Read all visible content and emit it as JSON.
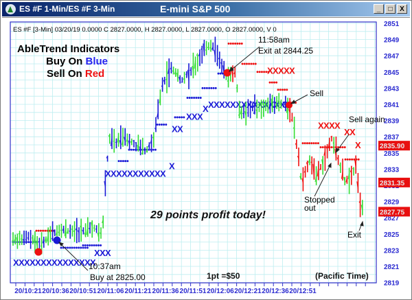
{
  "window": {
    "title_left": "ES #F 1-Min/ES #F 3-Min",
    "title_center": "E-mini S&P 500",
    "buttons": {
      "minimize": "_",
      "maximize": "□",
      "close": "X"
    }
  },
  "chart_header": "ES #F [3-Min] 03/20/19  0.0000 C 2827.0000, H 2827.0000, L 2827.0000, O 2827.0000, V 0",
  "legend": {
    "line1": "AbleTrend Indicators",
    "line2_prefix": "Buy On ",
    "line2_color_word": "Blue",
    "line3_prefix": "Sell On ",
    "line3_color_word": "Red"
  },
  "annotations": {
    "buy_time": "10:37am",
    "buy_price": "Buy at 2825.00",
    "exit_time": "11:58am",
    "exit_price": "Exit at 2844.25",
    "sell": "Sell",
    "sell_again": "Sell again",
    "stopped_out_1": "Stopped",
    "stopped_out_2": "out",
    "exit": "Exit",
    "profit": "29 points profit  today!",
    "point_value": "1pt =$50",
    "timezone": "(Pacific Time)"
  },
  "price_badges": [
    {
      "label": "2835.90",
      "value": 2835.9
    },
    {
      "label": "2831.35",
      "value": 2831.35
    },
    {
      "label": "2827.75",
      "value": 2827.75
    }
  ],
  "colors": {
    "buy": "#1a1ad6",
    "sell": "#ee1111",
    "neutral": "#33dd33",
    "grid": "#bdeef0",
    "axis_text": "#2b2bd0",
    "badge_bg": "#e81010"
  },
  "chart_data": {
    "type": "bar",
    "subtype": "ohlc-price-chart",
    "title": "E-mini S&P 500",
    "symbol": "ES #F",
    "interval": "3-Min",
    "date": "03/20/19",
    "xlabel": "(Pacific Time)",
    "ylabel": "",
    "ylim": [
      2819,
      2851
    ],
    "y_ticks": [
      2851,
      2849,
      2847,
      2845,
      2843,
      2841,
      2839,
      2837,
      2835,
      2833,
      2831,
      2829,
      2827,
      2825,
      2823,
      2821,
      2819
    ],
    "x_ticks": [
      "20/10:21",
      "20/10:36",
      "20/10:51",
      "20/11:06",
      "20/11:21",
      "20/11:36",
      "20/11:51",
      "20/12:06",
      "20/12:21",
      "20/12:36",
      "20/12:51"
    ],
    "grid": true,
    "legend_position": "top-left",
    "trades": [
      {
        "type": "buy",
        "time": "10:37am",
        "price": 2825.0
      },
      {
        "type": "exit",
        "time": "11:58am",
        "price": 2844.25
      },
      {
        "type": "sell",
        "approx_time": "20/12:21",
        "price": 2841.0
      },
      {
        "type": "stopped_out",
        "approx_time": "20/12:30",
        "price": 2836.5
      },
      {
        "type": "sell_again",
        "approx_time": "20/12:42",
        "price": 2836.5
      },
      {
        "type": "exit",
        "approx_time": "20/12:55",
        "price": 2827.75
      }
    ],
    "profit_points": 29,
    "point_value_usd": 50,
    "last_prices": [
      2835.9,
      2831.35,
      2827.75
    ],
    "approx_price_path": [
      {
        "x": "20/10:21",
        "price": 2824.5
      },
      {
        "x": "20/10:36",
        "price": 2824.5
      },
      {
        "x": "20/10:51",
        "price": 2825.0
      },
      {
        "x": "20/11:06",
        "price": 2838.0
      },
      {
        "x": "20/11:21",
        "price": 2838.0
      },
      {
        "x": "20/11:36",
        "price": 2846.0
      },
      {
        "x": "20/11:51",
        "price": 2848.0
      },
      {
        "x": "20/12:06",
        "price": 2841.0
      },
      {
        "x": "20/12:21",
        "price": 2841.0
      },
      {
        "x": "20/12:36",
        "price": 2834.0
      },
      {
        "x": "20/12:51",
        "price": 2827.75
      }
    ]
  }
}
